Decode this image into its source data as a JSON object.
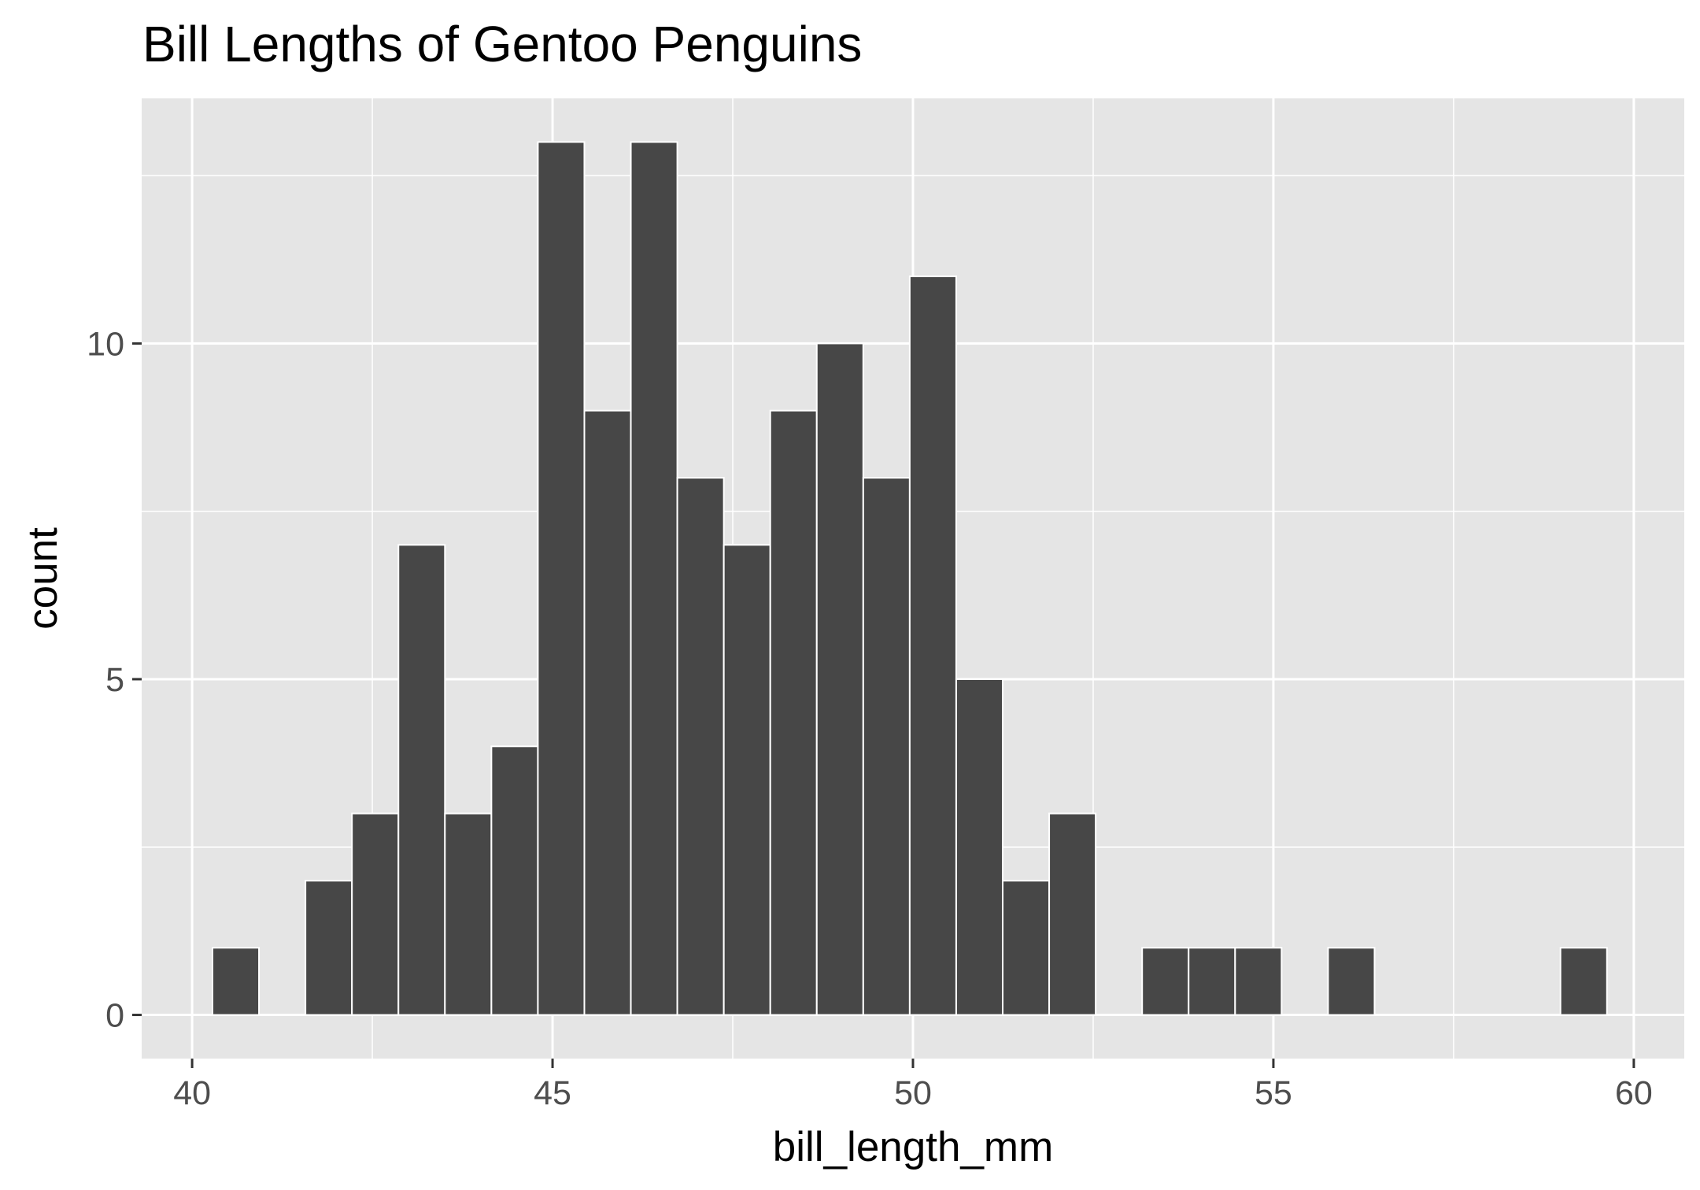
{
  "chart_data": {
    "type": "histogram",
    "title": "Bill Lengths of Gentoo Penguins",
    "xlabel": "bill_length_mm",
    "ylabel": "count",
    "xlim": [
      39.3,
      60.7
    ],
    "ylim": [
      -0.65,
      13.65
    ],
    "x_ticks": [
      40,
      45,
      50,
      55,
      60
    ],
    "y_ticks": [
      0,
      5,
      10
    ],
    "bin_width": 0.6448,
    "bins": [
      {
        "x_start": 40.2828,
        "x_end": 40.9276,
        "count": 1
      },
      {
        "x_start": 40.9276,
        "x_end": 41.5724,
        "count": 0
      },
      {
        "x_start": 41.5724,
        "x_end": 42.2172,
        "count": 2
      },
      {
        "x_start": 42.2172,
        "x_end": 42.8621,
        "count": 3
      },
      {
        "x_start": 42.8621,
        "x_end": 43.5069,
        "count": 7
      },
      {
        "x_start": 43.5069,
        "x_end": 44.1517,
        "count": 3
      },
      {
        "x_start": 44.1517,
        "x_end": 44.7966,
        "count": 4
      },
      {
        "x_start": 44.7966,
        "x_end": 45.4414,
        "count": 13
      },
      {
        "x_start": 45.4414,
        "x_end": 46.0862,
        "count": 9
      },
      {
        "x_start": 46.0862,
        "x_end": 46.731,
        "count": 13
      },
      {
        "x_start": 46.731,
        "x_end": 47.3759,
        "count": 8
      },
      {
        "x_start": 47.3759,
        "x_end": 48.0207,
        "count": 7
      },
      {
        "x_start": 48.0207,
        "x_end": 48.6655,
        "count": 9
      },
      {
        "x_start": 48.6655,
        "x_end": 49.3103,
        "count": 10
      },
      {
        "x_start": 49.3103,
        "x_end": 49.9552,
        "count": 8
      },
      {
        "x_start": 49.9552,
        "x_end": 50.6,
        "count": 11
      },
      {
        "x_start": 50.6,
        "x_end": 51.2448,
        "count": 5
      },
      {
        "x_start": 51.2448,
        "x_end": 51.8897,
        "count": 2
      },
      {
        "x_start": 51.8897,
        "x_end": 52.5345,
        "count": 3
      },
      {
        "x_start": 52.5345,
        "x_end": 53.1793,
        "count": 0
      },
      {
        "x_start": 53.1793,
        "x_end": 53.8241,
        "count": 1
      },
      {
        "x_start": 53.8241,
        "x_end": 54.469,
        "count": 1
      },
      {
        "x_start": 54.469,
        "x_end": 55.1138,
        "count": 1
      },
      {
        "x_start": 55.1138,
        "x_end": 55.7586,
        "count": 0
      },
      {
        "x_start": 55.7586,
        "x_end": 56.4034,
        "count": 1
      },
      {
        "x_start": 56.4034,
        "x_end": 57.0483,
        "count": 0
      },
      {
        "x_start": 57.0483,
        "x_end": 57.6931,
        "count": 0
      },
      {
        "x_start": 57.6931,
        "x_end": 58.3379,
        "count": 0
      },
      {
        "x_start": 58.3379,
        "x_end": 58.9828,
        "count": 0
      },
      {
        "x_start": 58.9828,
        "x_end": 59.6276,
        "count": 1
      }
    ],
    "grid": true,
    "legend": "none",
    "colors": {
      "panel_background": "#e5e5e5",
      "grid_line": "#ffffff",
      "bar_fill": "#474747",
      "bar_outline": "#ffffff",
      "tick_label": "#4d4d4d",
      "tick_mark": "#333333"
    }
  }
}
